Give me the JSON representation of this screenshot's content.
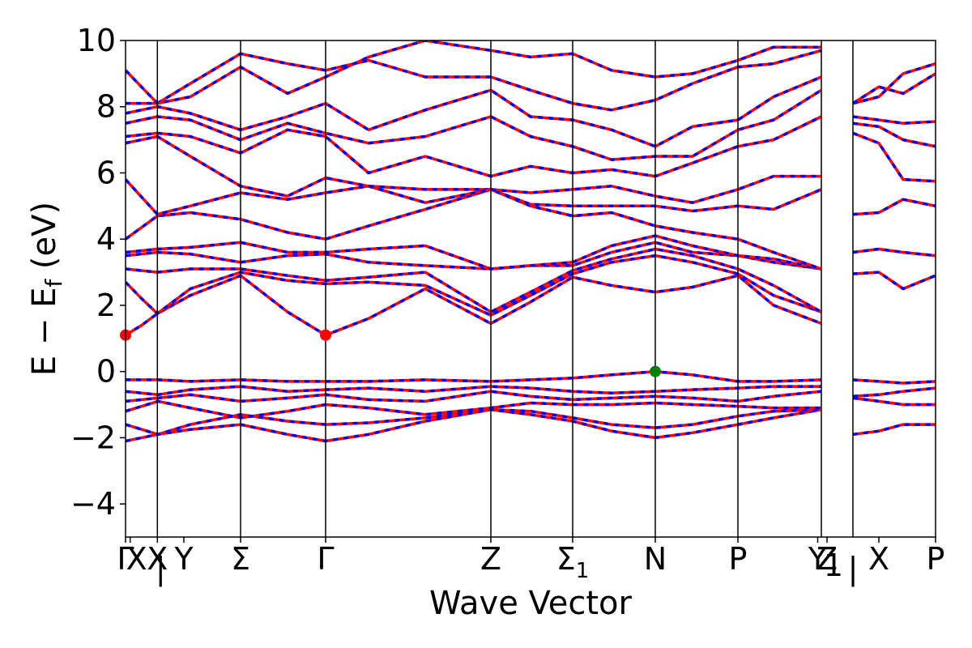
{
  "chart_data": {
    "type": "line",
    "title": "",
    "xlabel": "Wave Vector",
    "ylabel": "E − E",
    "ylabel_sub": "f",
    "ylabel_unit": " (eV)",
    "ylim": [
      -5,
      10
    ],
    "yticks": [
      {
        "value": -4,
        "label": "−4"
      },
      {
        "value": -2,
        "label": "−2"
      },
      {
        "value": 0,
        "label": "0"
      },
      {
        "value": 2,
        "label": "2"
      },
      {
        "value": 4,
        "label": "4"
      },
      {
        "value": 6,
        "label": "6"
      },
      {
        "value": 8,
        "label": "8"
      },
      {
        "value": 10,
        "label": "10"
      }
    ],
    "xlim": [
      0,
      1
    ],
    "kpoints": [
      {
        "pos": 0.0,
        "label": "Γ"
      },
      {
        "pos": 0.0057,
        "label": "X"
      },
      {
        "pos": 0.0393,
        "label": "X"
      },
      {
        "pos": 0.0393,
        "label": "|"
      },
      {
        "pos": 0.072,
        "label": "Y"
      },
      {
        "pos": 0.142,
        "label": "Σ"
      },
      {
        "pos": 0.247,
        "label": "Γ"
      },
      {
        "pos": 0.451,
        "label": "Z"
      },
      {
        "pos": 0.552,
        "label": "Σ",
        "sub": "1"
      },
      {
        "pos": 0.654,
        "label": "N"
      },
      {
        "pos": 0.756,
        "label": "P"
      },
      {
        "pos": 0.8545,
        "label": "Y"
      },
      {
        "pos": 0.866,
        "label": "Z"
      },
      {
        "pos": 0.864,
        "label": "1",
        "kind": "sub"
      },
      {
        "pos": 0.898,
        "label": "|"
      },
      {
        "pos": 0.93,
        "label": "X"
      },
      {
        "pos": 1.0,
        "label": "P"
      }
    ],
    "vlines": [
      0.0393,
      0.142,
      0.247,
      0.451,
      0.552,
      0.654,
      0.756,
      0.859,
      0.898
    ],
    "colors": {
      "spin_up": "#ff0000",
      "spin_down": "#0000ff"
    },
    "series": [
      {
        "x": [
          0,
          0.04,
          0.08,
          0.142,
          0.2,
          0.247,
          0.3,
          0.37,
          0.451,
          0.5,
          0.552,
          0.6,
          0.654,
          0.7,
          0.756,
          0.8,
          0.859
        ],
        "y": [
          -2.1,
          -1.9,
          -1.75,
          -1.6,
          -1.9,
          -2.1,
          -1.9,
          -1.5,
          -1.15,
          -1.3,
          -1.5,
          -1.8,
          -2.0,
          -1.85,
          -1.6,
          -1.4,
          -1.15
        ]
      },
      {
        "x": [
          0,
          0.04,
          0.08,
          0.142,
          0.2,
          0.247,
          0.3,
          0.37,
          0.451,
          0.5,
          0.552,
          0.6,
          0.654,
          0.7,
          0.756,
          0.8,
          0.859
        ],
        "y": [
          -1.6,
          -1.9,
          -1.6,
          -1.3,
          -1.5,
          -1.6,
          -1.55,
          -1.4,
          -1.15,
          -1.2,
          -1.4,
          -1.6,
          -1.7,
          -1.6,
          -1.35,
          -1.2,
          -1.15
        ]
      },
      {
        "x": [
          0,
          0.04,
          0.08,
          0.142,
          0.2,
          0.247,
          0.3,
          0.37,
          0.451,
          0.5,
          0.552,
          0.6,
          0.654,
          0.7,
          0.756,
          0.8,
          0.859
        ],
        "y": [
          -1.2,
          -0.9,
          -1.1,
          -1.4,
          -1.2,
          -1.0,
          -1.1,
          -1.3,
          -1.1,
          -0.95,
          -1.0,
          -1.0,
          -0.95,
          -1.0,
          -1.05,
          -1.1,
          -1.1
        ]
      },
      {
        "x": [
          0,
          0.04,
          0.08,
          0.142,
          0.2,
          0.247,
          0.3,
          0.37,
          0.451,
          0.5,
          0.552,
          0.6,
          0.654,
          0.7,
          0.756,
          0.8,
          0.859
        ],
        "y": [
          -0.9,
          -0.8,
          -0.7,
          -0.9,
          -0.8,
          -0.7,
          -0.85,
          -0.9,
          -0.6,
          -0.75,
          -0.85,
          -0.8,
          -0.75,
          -0.8,
          -0.9,
          -0.75,
          -0.6
        ]
      },
      {
        "x": [
          0,
          0.04,
          0.08,
          0.142,
          0.2,
          0.247,
          0.3,
          0.37,
          0.451,
          0.5,
          0.552,
          0.6,
          0.654,
          0.7,
          0.756,
          0.8,
          0.859
        ],
        "y": [
          -0.6,
          -0.7,
          -0.55,
          -0.45,
          -0.6,
          -0.55,
          -0.5,
          -0.6,
          -0.45,
          -0.5,
          -0.6,
          -0.65,
          -0.6,
          -0.55,
          -0.5,
          -0.45,
          -0.45
        ]
      },
      {
        "x": [
          0,
          0.04,
          0.08,
          0.142,
          0.2,
          0.247,
          0.3,
          0.37,
          0.451,
          0.5,
          0.552,
          0.6,
          0.654,
          0.7,
          0.756,
          0.8,
          0.859
        ],
        "y": [
          -0.25,
          -0.25,
          -0.3,
          -0.25,
          -0.3,
          -0.3,
          -0.3,
          -0.25,
          -0.3,
          -0.25,
          -0.2,
          -0.1,
          0.0,
          -0.1,
          -0.3,
          -0.3,
          -0.25
        ]
      },
      {
        "x": [
          0.898,
          0.93,
          0.96,
          1.0
        ],
        "y": [
          -1.9,
          -1.8,
          -1.6,
          -1.6
        ]
      },
      {
        "x": [
          0.898,
          0.93,
          0.96,
          1.0
        ],
        "y": [
          -0.8,
          -0.9,
          -1.0,
          -1.0
        ]
      },
      {
        "x": [
          0.898,
          0.93,
          0.96,
          1.0
        ],
        "y": [
          -0.75,
          -0.7,
          -0.6,
          -0.5
        ]
      },
      {
        "x": [
          0.898,
          0.93,
          0.96,
          1.0
        ],
        "y": [
          -0.25,
          -0.3,
          -0.35,
          -0.3
        ]
      },
      {
        "x": [
          0,
          0.02,
          0.0393,
          0.08,
          0.142,
          0.2,
          0.247,
          0.3,
          0.37,
          0.451,
          0.5,
          0.552,
          0.6,
          0.654,
          0.7,
          0.756,
          0.8,
          0.859
        ],
        "y": [
          1.1,
          1.4,
          1.75,
          2.3,
          2.9,
          1.8,
          1.1,
          1.6,
          2.5,
          1.45,
          2.1,
          2.85,
          2.6,
          2.4,
          2.55,
          2.9,
          2.0,
          1.45
        ]
      },
      {
        "x": [
          0,
          0.02,
          0.0393,
          0.08,
          0.142,
          0.2,
          0.247,
          0.3,
          0.37,
          0.451,
          0.5,
          0.552,
          0.6,
          0.654,
          0.7,
          0.756,
          0.8,
          0.859
        ],
        "y": [
          2.7,
          2.2,
          1.75,
          2.5,
          3.0,
          2.75,
          2.65,
          2.7,
          2.6,
          1.7,
          2.3,
          2.95,
          3.3,
          3.5,
          3.3,
          2.95,
          2.3,
          1.8
        ]
      },
      {
        "x": [
          0,
          0.0393,
          0.08,
          0.142,
          0.2,
          0.247,
          0.3,
          0.37,
          0.451,
          0.5,
          0.552,
          0.6,
          0.654,
          0.7,
          0.756,
          0.8,
          0.859
        ],
        "y": [
          3.1,
          3.0,
          3.1,
          3.1,
          2.9,
          2.75,
          2.85,
          3.0,
          1.8,
          2.4,
          3.05,
          3.4,
          3.7,
          3.5,
          3.1,
          2.6,
          1.8
        ]
      },
      {
        "x": [
          0,
          0.0393,
          0.08,
          0.142,
          0.2,
          0.247,
          0.3,
          0.37,
          0.451,
          0.5,
          0.552,
          0.6,
          0.654,
          0.7,
          0.756,
          0.8,
          0.859
        ],
        "y": [
          3.5,
          3.6,
          3.55,
          3.3,
          3.5,
          3.55,
          3.3,
          3.2,
          3.1,
          3.2,
          3.2,
          3.6,
          3.9,
          3.6,
          3.5,
          3.3,
          3.1
        ]
      },
      {
        "x": [
          0,
          0.0393,
          0.08,
          0.142,
          0.2,
          0.247,
          0.3,
          0.37,
          0.451,
          0.5,
          0.552,
          0.6,
          0.654,
          0.7,
          0.756,
          0.8,
          0.859
        ],
        "y": [
          3.6,
          3.7,
          3.75,
          3.9,
          3.6,
          3.6,
          3.7,
          3.8,
          3.1,
          3.2,
          3.3,
          3.8,
          4.1,
          3.8,
          3.5,
          3.4,
          3.1
        ]
      },
      {
        "x": [
          0,
          0.0393,
          0.08,
          0.142,
          0.2,
          0.247,
          0.3,
          0.37,
          0.451,
          0.5,
          0.552,
          0.6,
          0.654,
          0.7,
          0.756,
          0.8,
          0.859
        ],
        "y": [
          4.0,
          4.7,
          4.8,
          4.6,
          4.2,
          4.0,
          4.4,
          4.9,
          5.5,
          5.0,
          4.7,
          4.8,
          4.4,
          4.2,
          4.0,
          3.6,
          3.1
        ]
      },
      {
        "x": [
          0,
          0.0393,
          0.08,
          0.142,
          0.2,
          0.247,
          0.3,
          0.37,
          0.451,
          0.5,
          0.552,
          0.6,
          0.654,
          0.7,
          0.756,
          0.8,
          0.859
        ],
        "y": [
          5.8,
          4.75,
          5.0,
          5.4,
          5.2,
          5.4,
          5.6,
          5.5,
          5.5,
          5.05,
          5.0,
          5.0,
          5.0,
          4.85,
          5.0,
          4.9,
          5.5
        ]
      },
      {
        "x": [
          0,
          0.0393,
          0.08,
          0.142,
          0.2,
          0.247,
          0.3,
          0.37,
          0.451,
          0.5,
          0.552,
          0.6,
          0.654,
          0.7,
          0.756,
          0.8,
          0.859
        ],
        "y": [
          6.9,
          7.1,
          6.5,
          5.6,
          5.3,
          5.85,
          5.6,
          5.1,
          5.5,
          5.4,
          5.5,
          5.6,
          5.3,
          5.1,
          5.5,
          5.9,
          5.9
        ]
      },
      {
        "x": [
          0,
          0.0393,
          0.08,
          0.142,
          0.2,
          0.247,
          0.3,
          0.37,
          0.451,
          0.5,
          0.552,
          0.6,
          0.654,
          0.7,
          0.756,
          0.8,
          0.859
        ],
        "y": [
          7.1,
          7.2,
          7.1,
          6.6,
          7.3,
          7.1,
          6.0,
          6.5,
          5.9,
          6.2,
          6.0,
          6.1,
          5.9,
          6.3,
          6.8,
          7.0,
          7.7
        ]
      },
      {
        "x": [
          0,
          0.0393,
          0.08,
          0.142,
          0.2,
          0.247,
          0.3,
          0.37,
          0.451,
          0.5,
          0.552,
          0.6,
          0.654,
          0.7,
          0.756,
          0.8,
          0.859
        ],
        "y": [
          7.5,
          7.7,
          7.6,
          7.0,
          7.5,
          7.2,
          6.9,
          7.1,
          7.7,
          7.1,
          6.8,
          6.4,
          6.5,
          6.5,
          7.3,
          7.6,
          8.5
        ]
      },
      {
        "x": [
          0,
          0.0393,
          0.08,
          0.142,
          0.2,
          0.247,
          0.3,
          0.37,
          0.451,
          0.5,
          0.552,
          0.6,
          0.654,
          0.7,
          0.756,
          0.8,
          0.859
        ],
        "y": [
          7.8,
          8.0,
          7.8,
          7.3,
          7.7,
          8.1,
          7.3,
          7.9,
          8.5,
          7.7,
          7.6,
          7.3,
          6.8,
          7.4,
          7.6,
          8.3,
          8.9
        ]
      },
      {
        "x": [
          0,
          0.0393,
          0.08,
          0.142,
          0.2,
          0.247,
          0.3,
          0.37,
          0.451,
          0.5,
          0.552,
          0.6,
          0.654,
          0.7,
          0.756,
          0.8,
          0.859
        ],
        "y": [
          8.1,
          8.1,
          8.7,
          9.6,
          9.3,
          9.1,
          9.4,
          8.9,
          8.9,
          8.5,
          8.1,
          7.9,
          8.2,
          8.7,
          9.2,
          9.3,
          9.7
        ]
      },
      {
        "x": [
          0,
          0.0393,
          0.08,
          0.142,
          0.2,
          0.247,
          0.3,
          0.37,
          0.451,
          0.5,
          0.552,
          0.6,
          0.654,
          0.7,
          0.756,
          0.8,
          0.859
        ],
        "y": [
          9.1,
          8.1,
          8.3,
          9.2,
          8.4,
          8.9,
          9.5,
          10.0,
          9.7,
          9.5,
          9.6,
          9.1,
          8.9,
          9.0,
          9.4,
          9.8,
          9.8
        ]
      },
      {
        "x": [
          0.898,
          0.93,
          0.96,
          1.0
        ],
        "y": [
          2.95,
          3.0,
          2.5,
          2.9
        ]
      },
      {
        "x": [
          0.898,
          0.93,
          0.96,
          1.0
        ],
        "y": [
          3.6,
          3.7,
          3.6,
          3.5
        ]
      },
      {
        "x": [
          0.898,
          0.93,
          0.96,
          1.0
        ],
        "y": [
          4.75,
          4.8,
          5.2,
          5.0
        ]
      },
      {
        "x": [
          0.898,
          0.93,
          0.96,
          1.0
        ],
        "y": [
          7.2,
          6.9,
          5.8,
          5.75
        ]
      },
      {
        "x": [
          0.898,
          0.93,
          0.96,
          1.0
        ],
        "y": [
          7.5,
          7.4,
          7.0,
          6.8
        ]
      },
      {
        "x": [
          0.898,
          0.93,
          0.96,
          1.0
        ],
        "y": [
          7.7,
          7.6,
          7.5,
          7.55
        ]
      },
      {
        "x": [
          0.898,
          0.93,
          0.96,
          1.0
        ],
        "y": [
          8.1,
          8.6,
          8.4,
          9.0
        ]
      },
      {
        "x": [
          0.898,
          0.93,
          0.96,
          1.0
        ],
        "y": [
          8.1,
          8.3,
          9.0,
          9.3
        ]
      }
    ],
    "markers": [
      {
        "x": 0.0,
        "y": 1.1,
        "color": "#ff0000"
      },
      {
        "x": 0.247,
        "y": 1.1,
        "color": "#ff0000"
      },
      {
        "x": 0.654,
        "y": 0.0,
        "color": "#008000"
      }
    ],
    "grid": false
  }
}
